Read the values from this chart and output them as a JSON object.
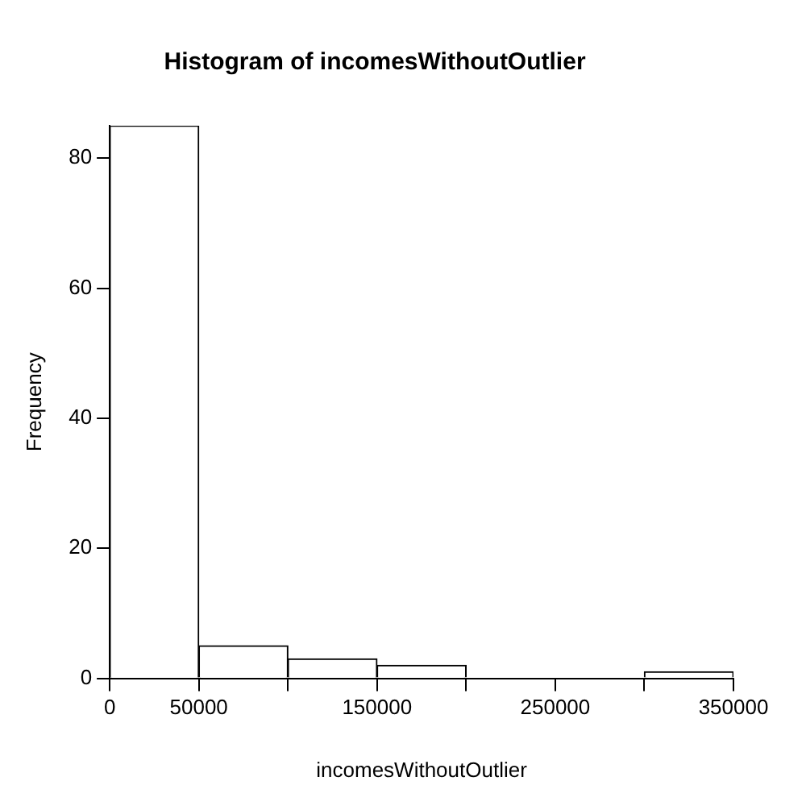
{
  "chart_data": {
    "type": "histogram",
    "title": "Histogram of incomesWithoutOutlier",
    "xlabel": "incomesWithoutOutlier",
    "ylabel": "Frequency",
    "bins": [
      0,
      50000,
      100000,
      150000,
      200000,
      250000,
      300000,
      350000
    ],
    "values": [
      85,
      5,
      3,
      2,
      0,
      0,
      1
    ],
    "color": "#ffffff",
    "xlim": [
      0,
      350000
    ],
    "ylim": [
      0,
      85
    ],
    "xticks": [
      0,
      50000,
      {
        "value": 100000,
        "label": null
      },
      150000,
      {
        "value": 200000,
        "label": null
      },
      250000,
      {
        "value": 300000,
        "label": null
      },
      350000
    ],
    "yticks": [
      0,
      20,
      40,
      60,
      80
    ],
    "grid": false,
    "legend": false
  }
}
